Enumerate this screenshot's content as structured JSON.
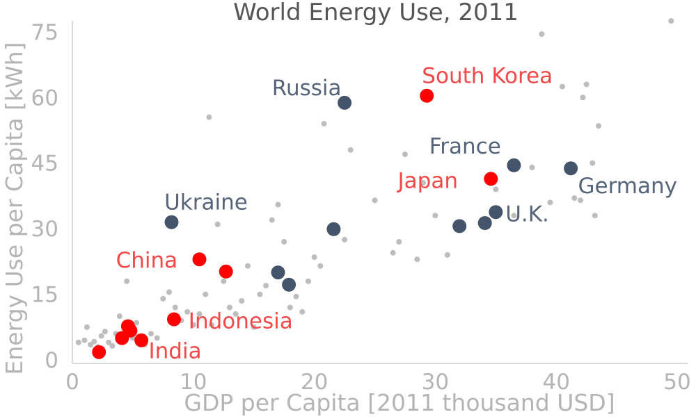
{
  "chart_data": {
    "type": "scatter",
    "title": "World Energy Use, 2011",
    "xlabel": "GDP per Capita [2011 thousand USD]",
    "ylabel": "Energy Use per Capita [kWh]",
    "xlim": [
      0,
      50
    ],
    "ylim": [
      0,
      78
    ],
    "xticks": [
      0,
      10,
      20,
      30,
      40,
      50
    ],
    "yticks": [
      0,
      15,
      30,
      45,
      60,
      75
    ],
    "grid": false,
    "colors": {
      "background": "#bdbdbd",
      "dark": "#44546a",
      "red": "#ff0000",
      "dark_label": "#56647a",
      "red_label": "#f24848"
    },
    "series": [
      {
        "points": [
          [
            0.5,
            4
          ],
          [
            1,
            4.5
          ],
          [
            1.2,
            7.5
          ],
          [
            1.5,
            3.5
          ],
          [
            1.8,
            4.2
          ],
          [
            2.1,
            3
          ],
          [
            2.4,
            5.5
          ],
          [
            2.7,
            6.5
          ],
          [
            3,
            4
          ],
          [
            3.3,
            3.2
          ],
          [
            3.6,
            6
          ],
          [
            3.9,
            10
          ],
          [
            4.2,
            4.5
          ],
          [
            4.6,
            6.5
          ],
          [
            5,
            5
          ],
          [
            5.3,
            8.5
          ],
          [
            6,
            3.5
          ],
          [
            6.5,
            6
          ],
          [
            7,
            5
          ],
          [
            7.5,
            14
          ],
          [
            8,
            15.5
          ],
          [
            8.5,
            12
          ],
          [
            9,
            9
          ],
          [
            9.5,
            11
          ],
          [
            10,
            8
          ],
          [
            10.5,
            10.5
          ],
          [
            11,
            15
          ],
          [
            11.5,
            8
          ],
          [
            12,
            31
          ],
          [
            12.5,
            18
          ],
          [
            13,
            12
          ],
          [
            13.5,
            10.5
          ],
          [
            14,
            13.5
          ],
          [
            14.5,
            21.5
          ],
          [
            15,
            7.5
          ],
          [
            15.5,
            15
          ],
          [
            16,
            17
          ],
          [
            16.5,
            32
          ],
          [
            17,
            35.5
          ],
          [
            17.5,
            27
          ],
          [
            18,
            12
          ],
          [
            18.5,
            14.5
          ],
          [
            19,
            11
          ],
          [
            19.5,
            18
          ],
          [
            20,
            23.5
          ],
          [
            20.5,
            21.5
          ],
          [
            20.8,
            54
          ],
          [
            21.5,
            29.5
          ],
          [
            22.5,
            27.5
          ],
          [
            23,
            48
          ],
          [
            25,
            36.5
          ],
          [
            26.5,
            24.5
          ],
          [
            27,
            27
          ],
          [
            27.5,
            47
          ],
          [
            28.5,
            23
          ],
          [
            29,
            40.5
          ],
          [
            30,
            33
          ],
          [
            31,
            24
          ],
          [
            35,
            39
          ],
          [
            36.5,
            33
          ],
          [
            38,
            44
          ],
          [
            38.8,
            74.5
          ],
          [
            39.5,
            36
          ],
          [
            40.5,
            62.5
          ],
          [
            41.5,
            37
          ],
          [
            42,
            36.5
          ],
          [
            42.2,
            60
          ],
          [
            42.5,
            63
          ],
          [
            43,
            45
          ],
          [
            43.2,
            33
          ],
          [
            43.5,
            53.5
          ],
          [
            49.5,
            77.5
          ],
          [
            11.3,
            55.5
          ],
          [
            4.5,
            18
          ]
        ]
      },
      {
        "points": [
          [
            8.2,
            31.5
          ],
          [
            17,
            20
          ],
          [
            17.9,
            17.2
          ],
          [
            21.6,
            29.9
          ],
          [
            22.5,
            58.8
          ],
          [
            32,
            30.6
          ],
          [
            34.1,
            31.3
          ],
          [
            35,
            33.8
          ],
          [
            36.5,
            44.5
          ],
          [
            41.2,
            43.8
          ]
        ]
      },
      {
        "points": [
          [
            2.2,
            1.8
          ],
          [
            4.1,
            5
          ],
          [
            4.6,
            7.7
          ],
          [
            4.8,
            6.7
          ],
          [
            5.7,
            4.5
          ],
          [
            8.4,
            9.3
          ],
          [
            10.5,
            23
          ],
          [
            12.7,
            20.2
          ],
          [
            29.3,
            60.4
          ],
          [
            34.6,
            41.4
          ]
        ]
      }
    ],
    "annotations": [
      {
        "text": "Russia",
        "x": 16.5,
        "y": 60.5,
        "color": "dark_label"
      },
      {
        "text": "South Korea",
        "x": 28.9,
        "y": 63.3,
        "color": "red_label"
      },
      {
        "text": "France",
        "x": 29.5,
        "y": 47.2,
        "color": "dark_label"
      },
      {
        "text": "Japan",
        "x": 26.9,
        "y": 39.3,
        "color": "red_label"
      },
      {
        "text": "Germany",
        "x": 41.8,
        "y": 38.1,
        "color": "dark_label"
      },
      {
        "text": "Ukraine",
        "x": 7.6,
        "y": 34.4,
        "color": "dark_label"
      },
      {
        "text": "U.K.",
        "x": 35.8,
        "y": 31.7,
        "color": "dark_label"
      },
      {
        "text": "China",
        "x": 3.6,
        "y": 21.1,
        "color": "red_label"
      },
      {
        "text": "Indonesia",
        "x": 9.6,
        "y": 7.2,
        "color": "red_label"
      },
      {
        "text": "India",
        "x": 6.3,
        "y": 0.4,
        "color": "red_label"
      }
    ]
  }
}
